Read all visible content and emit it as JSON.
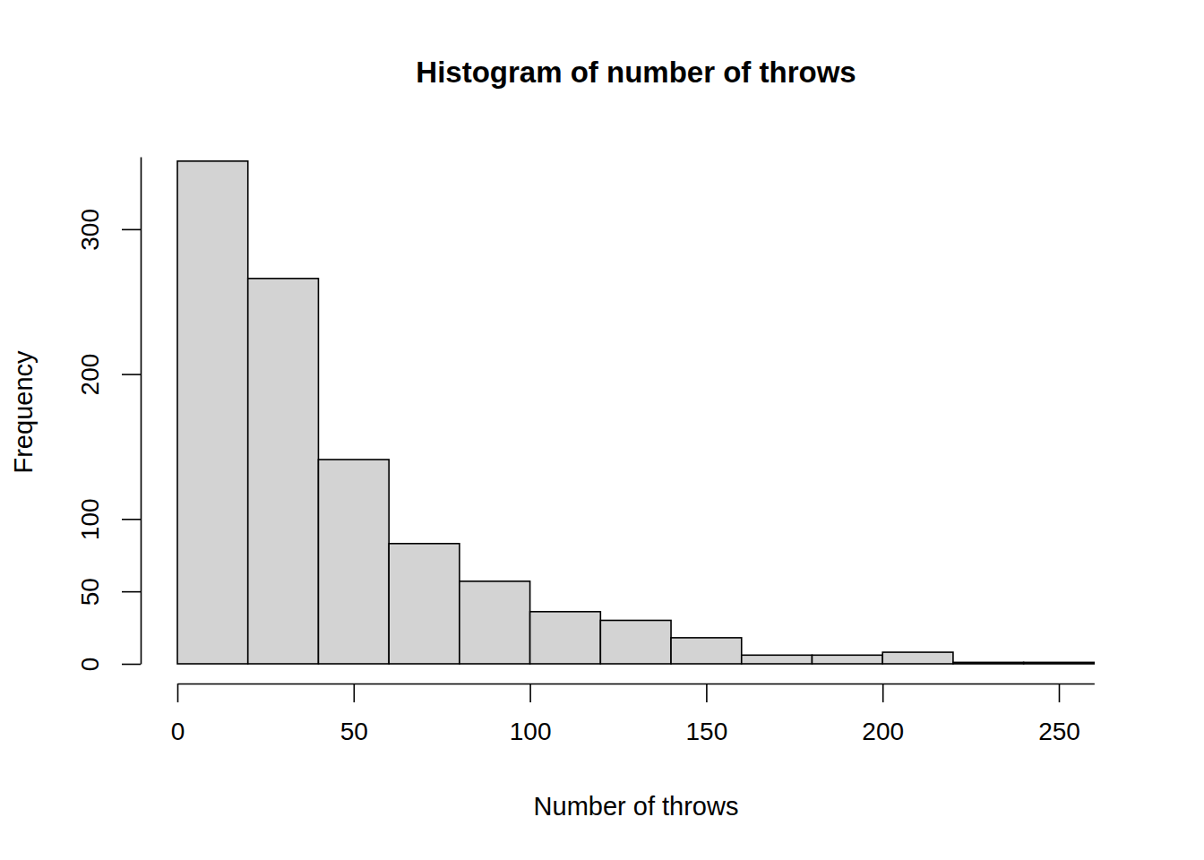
{
  "chart_data": {
    "type": "histogram",
    "title": "Histogram of number of throws",
    "x_label": "Number of throws",
    "y_label": "Frequency",
    "bins": [
      0,
      20,
      40,
      60,
      80,
      100,
      120,
      140,
      160,
      180,
      200,
      220,
      240,
      260
    ],
    "values": [
      347,
      266,
      141,
      83,
      57,
      36,
      30,
      18,
      6,
      6,
      8,
      1,
      1
    ],
    "color": "#d3d3d3",
    "xlim": [
      0,
      260
    ],
    "ylim": [
      0,
      350
    ],
    "xticks": [
      0,
      50,
      100,
      150,
      200,
      250
    ],
    "yticks": [
      0,
      50,
      100,
      200,
      300
    ],
    "grid": false
  }
}
